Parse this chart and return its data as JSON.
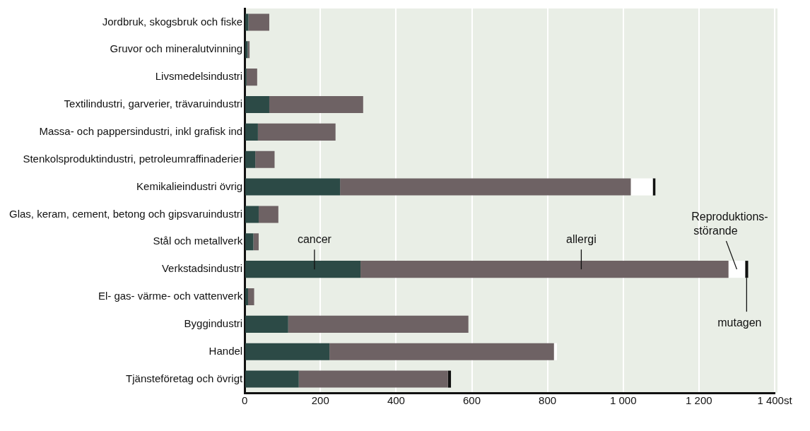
{
  "chart_data": {
    "type": "bar",
    "orientation": "horizontal",
    "stacked": true,
    "categories": [
      "Jordbruk, skogsbruk och fiske",
      "Gruvor och mineralutvinning",
      "Livsmedelsindustri",
      "Textilindustri, garverier, trävaruindustri",
      "Massa- och pappersindustri, inkl grafisk ind",
      "Stenkolsproduktindustri, petroleumraffinaderier",
      "Kemikalieindustri övrig",
      "Glas, keram, cement, betong och gipsvaruindustri",
      "Stål och metallverk",
      "Verkstadsindustri",
      "El- gas- värme- och vattenverk",
      "Byggindustri",
      "Handel",
      "Tjänsteföretag och övrigt"
    ],
    "series": [
      {
        "name": "cancer",
        "color": "#2c4a46",
        "values": [
          10,
          8,
          5,
          65,
          35,
          28,
          252,
          37,
          23,
          306,
          9,
          115,
          224,
          143
        ]
      },
      {
        "name": "allergi",
        "color": "#6e6264",
        "values": [
          55,
          5,
          28,
          248,
          205,
          51,
          768,
          52,
          14,
          972,
          16,
          476,
          593,
          394
        ]
      },
      {
        "name": "Reproduktions-störande",
        "color": "#ffffff",
        "values": [
          0,
          0,
          0,
          0,
          0,
          0,
          58,
          0,
          0,
          44,
          0,
          0,
          8,
          0
        ]
      },
      {
        "name": "mutagen",
        "color": "#111111",
        "values": [
          0,
          0,
          0,
          0,
          0,
          0,
          7,
          0,
          0,
          8,
          0,
          0,
          0,
          8
        ]
      }
    ],
    "xlim": [
      0,
      1400
    ],
    "xticks": [
      0,
      200,
      400,
      600,
      800,
      {
        "value": 1000,
        "label": "1 000"
      },
      {
        "value": 1200,
        "label": "1 200"
      },
      {
        "value": 1400,
        "label": "1 400st"
      }
    ],
    "grid": "x",
    "legend": false
  }
}
